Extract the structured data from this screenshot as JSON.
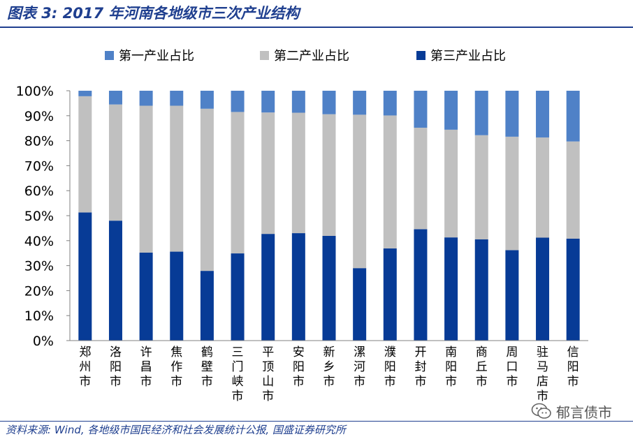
{
  "title": "图表 3:  2017 年河南各地级市三次产业结构",
  "source": "资料来源:  Wind, 各地级市国民经济和社会发展统计公报, 国盛证券研究所",
  "watermark": "郁言债市",
  "colors": {
    "primary": "#4f81c7",
    "secondary": "#c0c0c0",
    "tertiary": "#073b96",
    "title": "#1f3f8f"
  },
  "chart_data": {
    "type": "bar",
    "stacked": true,
    "title": "2017 年河南各地级市三次产业结构",
    "xlabel": "",
    "ylabel": "",
    "ylim": [
      0,
      100
    ],
    "yticks": [
      "0%",
      "10%",
      "20%",
      "30%",
      "40%",
      "50%",
      "60%",
      "70%",
      "80%",
      "90%",
      "100%"
    ],
    "categories": [
      "郑州市",
      "洛阳市",
      "许昌市",
      "焦作市",
      "鹤壁市",
      "三门峡市",
      "平顶山市",
      "安阳市",
      "新乡市",
      "漯河市",
      "濮阳市",
      "开封市",
      "南阳市",
      "商丘市",
      "周口市",
      "驻马店市",
      "信阳市"
    ],
    "legend_position": "top",
    "series": [
      {
        "name": "第三产业占比",
        "values": [
          51.3,
          48.0,
          35.2,
          35.6,
          27.9,
          34.9,
          42.7,
          43.0,
          41.9,
          29.0,
          36.9,
          44.6,
          41.3,
          40.5,
          36.2,
          41.2,
          40.8
        ]
      },
      {
        "name": "第二产业占比",
        "values": [
          46.5,
          46.5,
          58.8,
          58.4,
          64.9,
          56.6,
          48.6,
          48.2,
          48.7,
          61.4,
          53.2,
          40.6,
          43.1,
          41.7,
          45.4,
          40.1,
          38.9
        ]
      },
      {
        "name": "第一产业占比",
        "values": [
          2.2,
          5.5,
          6.0,
          6.0,
          7.2,
          8.5,
          8.7,
          8.8,
          9.4,
          9.6,
          9.9,
          14.8,
          15.6,
          17.8,
          18.4,
          18.7,
          20.3
        ]
      }
    ],
    "legend": [
      "第一产业占比",
      "第二产业占比",
      "第三产业占比"
    ]
  }
}
